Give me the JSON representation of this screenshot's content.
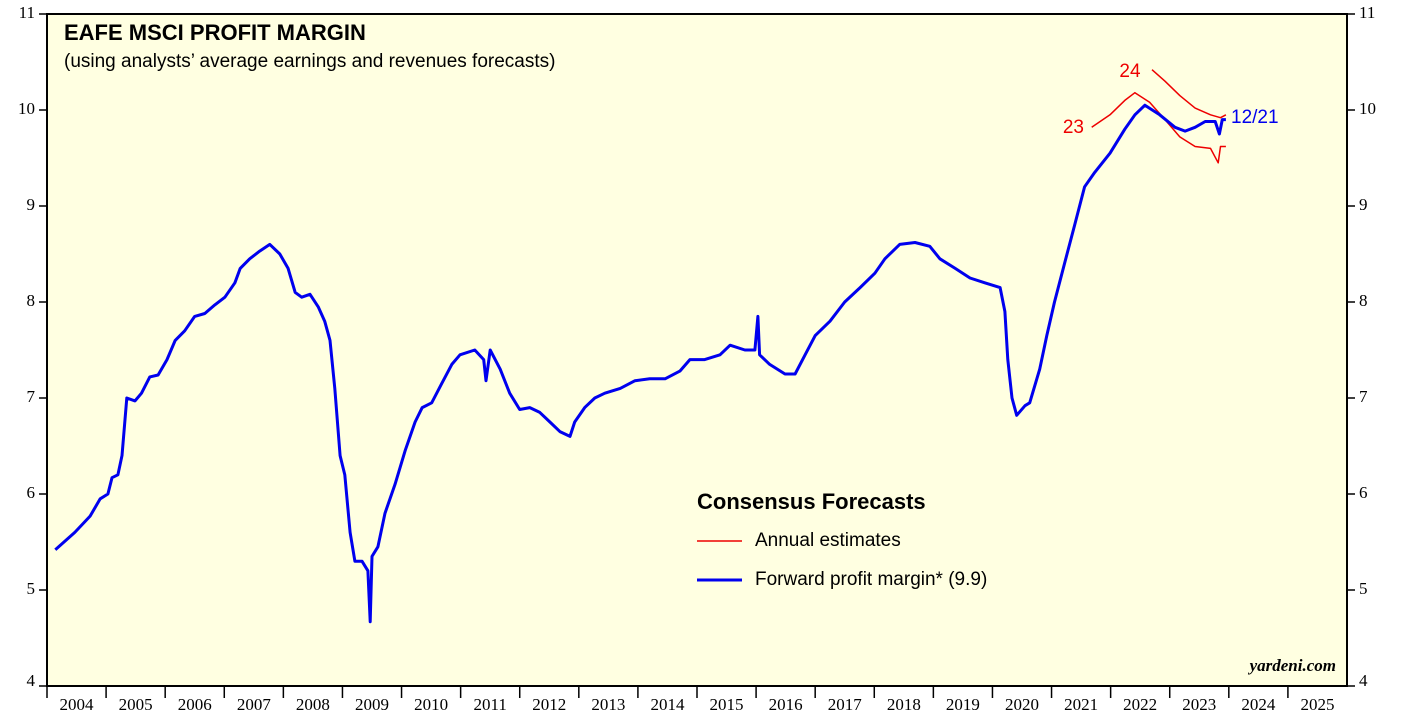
{
  "chart_data": {
    "type": "line",
    "title": "EAFE MSCI PROFIT MARGIN",
    "subtitle": "(using analysts’ average earnings and revenues forecasts)",
    "xlim": [
      2004,
      2026
    ],
    "xticks": [
      2004,
      2005,
      2006,
      2007,
      2008,
      2009,
      2010,
      2011,
      2012,
      2013,
      2014,
      2015,
      2016,
      2017,
      2018,
      2019,
      2020,
      2021,
      2022,
      2023,
      2024,
      2025
    ],
    "ylim": [
      4,
      11
    ],
    "yticks": [
      4,
      5,
      6,
      7,
      8,
      9,
      10,
      11
    ],
    "series": [
      {
        "name": "12/21",
        "color": "#0000ee",
        "x": [
          2004.14,
          2004.47,
          2004.73,
          2004.9,
          2005.03,
          2005.1,
          2005.2,
          2005.27,
          2005.35,
          2005.49,
          2005.6,
          2005.74,
          2005.88,
          2006.03,
          2006.17,
          2006.33,
          2006.5,
          2006.67,
          2006.84,
          2007.01,
          2007.18,
          2007.27,
          2007.43,
          2007.6,
          2007.77,
          2007.94,
          2008.08,
          2008.2,
          2008.31,
          2008.45,
          2008.59,
          2008.7,
          2008.79,
          2008.87,
          2008.96,
          2009.04,
          2009.13,
          2009.21,
          2009.33,
          2009.43,
          2009.47,
          2009.5,
          2009.6,
          2009.72,
          2009.89,
          2010.06,
          2010.23,
          2010.35,
          2010.51,
          2010.68,
          2010.85,
          2010.99,
          2011.24,
          2011.39,
          2011.43,
          2011.5,
          2011.67,
          2011.83,
          2012.0,
          2012.17,
          2012.34,
          2012.51,
          2012.68,
          2012.85,
          2012.93,
          2013.1,
          2013.27,
          2013.44,
          2013.7,
          2013.95,
          2014.2,
          2014.46,
          2014.71,
          2014.88,
          2015.13,
          2015.39,
          2015.56,
          2015.81,
          2015.98,
          2016.03,
          2016.06,
          2016.23,
          2016.49,
          2016.66,
          2016.83,
          2017.0,
          2017.25,
          2017.5,
          2017.76,
          2018.01,
          2018.18,
          2018.43,
          2018.69,
          2018.94,
          2019.11,
          2019.37,
          2019.62,
          2019.87,
          2020.13,
          2020.21,
          2020.26,
          2020.33,
          2020.41,
          2020.55,
          2020.63,
          2020.8,
          2020.92,
          2021.05,
          2021.22,
          2021.39,
          2021.56,
          2021.73,
          2021.99,
          2022.24,
          2022.41,
          2022.58,
          2022.83,
          2023.09,
          2023.26,
          2023.43,
          2023.6,
          2023.77,
          2023.84,
          2023.89,
          2023.95
        ],
        "values": [
          5.42,
          5.6,
          5.77,
          5.95,
          6.0,
          6.17,
          6.2,
          6.4,
          7.0,
          6.97,
          7.05,
          7.22,
          7.24,
          7.4,
          7.6,
          7.7,
          7.85,
          7.88,
          7.97,
          8.05,
          8.2,
          8.35,
          8.45,
          8.53,
          8.6,
          8.5,
          8.35,
          8.1,
          8.05,
          8.08,
          7.95,
          7.8,
          7.6,
          7.1,
          6.4,
          6.2,
          5.6,
          5.3,
          5.3,
          5.2,
          4.67,
          5.35,
          5.45,
          5.8,
          6.1,
          6.45,
          6.75,
          6.9,
          6.95,
          7.15,
          7.35,
          7.45,
          7.5,
          7.4,
          7.18,
          7.5,
          7.3,
          7.05,
          6.88,
          6.9,
          6.85,
          6.75,
          6.65,
          6.6,
          6.75,
          6.9,
          7.0,
          7.05,
          7.1,
          7.18,
          7.2,
          7.2,
          7.28,
          7.4,
          7.4,
          7.45,
          7.55,
          7.5,
          7.5,
          7.85,
          7.45,
          7.35,
          7.25,
          7.25,
          7.45,
          7.65,
          7.8,
          8.0,
          8.15,
          8.3,
          8.45,
          8.6,
          8.62,
          8.58,
          8.45,
          8.35,
          8.25,
          8.2,
          8.15,
          7.9,
          7.4,
          7.0,
          6.82,
          6.92,
          6.95,
          7.3,
          7.65,
          8.0,
          8.4,
          8.8,
          9.2,
          9.35,
          9.55,
          9.8,
          9.95,
          10.05,
          9.95,
          9.82,
          9.78,
          9.82,
          9.88,
          9.88,
          9.75,
          9.9,
          9.9
        ]
      },
      {
        "name": "23",
        "color": "#ee0000",
        "x": [
          2021.68,
          2021.99,
          2022.24,
          2022.41,
          2022.66,
          2022.92,
          2023.17,
          2023.43,
          2023.69,
          2023.82,
          2023.86,
          2023.95
        ],
        "values": [
          9.82,
          9.95,
          10.1,
          10.18,
          10.08,
          9.9,
          9.72,
          9.62,
          9.6,
          9.45,
          9.62,
          9.62
        ]
      },
      {
        "name": "24",
        "color": "#ee0000",
        "x": [
          2022.7,
          2022.92,
          2023.17,
          2023.43,
          2023.69,
          2023.86,
          2023.95
        ],
        "values": [
          10.42,
          10.3,
          10.15,
          10.02,
          9.95,
          9.92,
          9.95
        ]
      }
    ],
    "legend": {
      "title": "Consensus Forecasts",
      "entries": [
        {
          "label": "Annual estimates",
          "color": "#ee0000"
        },
        {
          "label": "Forward profit margin* (9.9)",
          "color": "#0000ee"
        }
      ]
    },
    "source": "yardeni.com"
  }
}
